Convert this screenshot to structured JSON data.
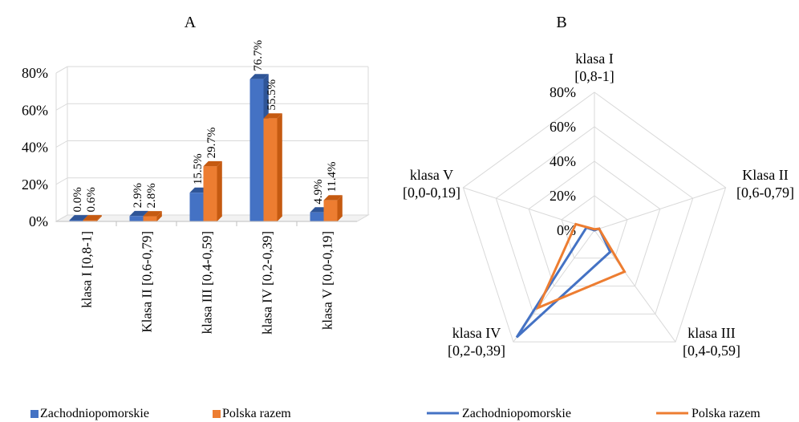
{
  "chart_data": [
    {
      "type": "bar",
      "title": "A",
      "categories": [
        "klasa I [0,8-1]",
        "Klasa II [0,6-0,79]",
        "klasa III [0,4-0,59]",
        "klasa IV [0,2-0,39]",
        "klasa V [0,0-0,19]"
      ],
      "series": [
        {
          "name": "Zachodniopomorskie",
          "values": [
            0.0,
            2.9,
            15.5,
            76.7,
            4.9
          ],
          "labels": [
            "0.0%",
            "2.9%",
            "15.5%",
            "76.7%",
            "4.9%"
          ]
        },
        {
          "name": "Polska razem",
          "values": [
            0.6,
            2.8,
            29.7,
            55.5,
            11.4
          ],
          "labels": [
            "0.6%",
            "2.8%",
            "29.7%",
            "55.5%",
            "11.4%"
          ]
        }
      ],
      "y_ticks": [
        "0%",
        "20%",
        "40%",
        "60%",
        "80%"
      ],
      "ylim": [
        0,
        80
      ],
      "grid": true,
      "legend_position": "bottom"
    },
    {
      "type": "radar",
      "title": "B",
      "axes": [
        {
          "name": "klasa I",
          "range": "[0,8-1]"
        },
        {
          "name": "Klasa II",
          "range": "[0,6-0,79]"
        },
        {
          "name": "klasa III",
          "range": "[0,4-0,59]"
        },
        {
          "name": "klasa IV",
          "range": "[0,2-0,39]"
        },
        {
          "name": "klasa V",
          "range": "[0,0-0,19]"
        }
      ],
      "series": [
        {
          "name": "Zachodniopomorskie",
          "values": [
            0.0,
            2.9,
            15.5,
            76.7,
            4.9
          ]
        },
        {
          "name": "Polska razem",
          "values": [
            0.6,
            2.8,
            29.7,
            55.5,
            11.4
          ]
        }
      ],
      "r_ticks": [
        "0%",
        "20%",
        "40%",
        "60%",
        "80%"
      ],
      "rlim": [
        0,
        80
      ],
      "grid": true,
      "legend_position": "bottom"
    }
  ],
  "colors": {
    "blue": "#4472C4",
    "blue_dark": "#2F5597",
    "orange": "#ED7D31",
    "orange_dark": "#C55A11",
    "grid": "#D9D9D9"
  }
}
